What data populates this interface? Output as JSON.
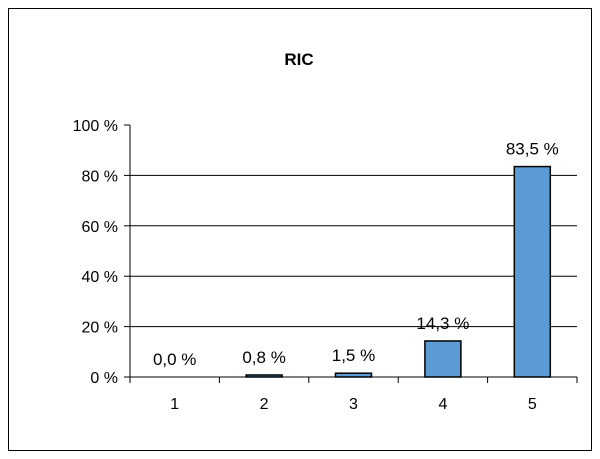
{
  "chart_data": {
    "type": "bar",
    "title": "RIC",
    "categories": [
      "1",
      "2",
      "3",
      "4",
      "5"
    ],
    "values": [
      0.0,
      0.8,
      1.5,
      14.3,
      83.5
    ],
    "data_labels": [
      "0,0 %",
      "0,8 %",
      "1,5 %",
      "14,3 %",
      "83,5 %"
    ],
    "ylim": [
      0,
      100
    ],
    "yticks": [
      {
        "value": 0,
        "label": "0 %"
      },
      {
        "value": 20,
        "label": "20 %"
      },
      {
        "value": 40,
        "label": "40 %"
      },
      {
        "value": 60,
        "label": "60 %"
      },
      {
        "value": 80,
        "label": "80 %"
      },
      {
        "value": 100,
        "label": "100 %"
      }
    ],
    "grid": true,
    "legend": "none",
    "bar_color": "#5B9BD5"
  }
}
